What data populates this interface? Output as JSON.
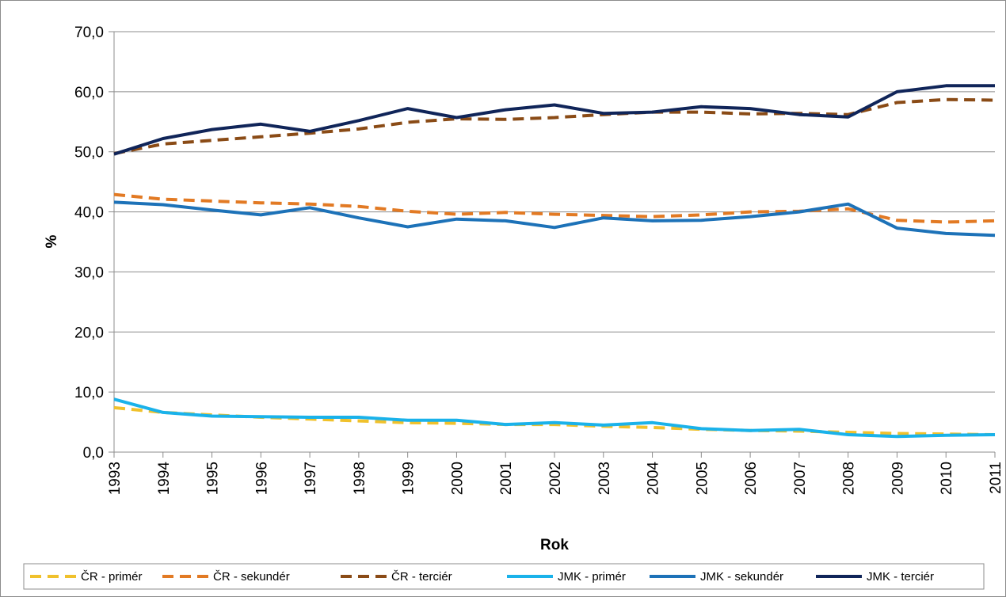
{
  "chart_data": {
    "type": "line",
    "title": "",
    "xlabel": "Rok",
    "ylabel": "%",
    "ylim": [
      0,
      70
    ],
    "yticks": [
      "0,0",
      "10,0",
      "20,0",
      "30,0",
      "40,0",
      "50,0",
      "60,0",
      "70,0"
    ],
    "grid": true,
    "legend_position": "bottom",
    "categories": [
      "1993",
      "1994",
      "1995",
      "1996",
      "1997",
      "1998",
      "1999",
      "2000",
      "2001",
      "2002",
      "2003",
      "2004",
      "2005",
      "2006",
      "2007",
      "2008",
      "2009",
      "2010",
      "2011"
    ],
    "series": [
      {
        "name": "ČR - primér",
        "color": "#f0c12c",
        "dashed": true,
        "values": [
          7.4,
          6.6,
          6.2,
          5.8,
          5.5,
          5.2,
          4.9,
          4.8,
          4.6,
          4.6,
          4.3,
          4.1,
          3.8,
          3.6,
          3.5,
          3.3,
          3.1,
          3.0,
          2.9
        ]
      },
      {
        "name": "ČR - sekundér",
        "color": "#e27a24",
        "dashed": true,
        "values": [
          42.9,
          42.1,
          41.8,
          41.5,
          41.3,
          40.9,
          40.1,
          39.6,
          39.9,
          39.6,
          39.4,
          39.2,
          39.5,
          40.0,
          40.1,
          40.5,
          38.6,
          38.3,
          38.5
        ]
      },
      {
        "name": "ČR - terciér",
        "color": "#8a4b16",
        "dashed": true,
        "values": [
          49.7,
          51.3,
          51.9,
          52.5,
          53.1,
          53.8,
          54.9,
          55.5,
          55.4,
          55.7,
          56.2,
          56.6,
          56.6,
          56.3,
          56.4,
          56.2,
          58.2,
          58.7,
          58.6
        ]
      },
      {
        "name": "JMK - primér",
        "color": "#1ab2ea",
        "dashed": false,
        "values": [
          8.8,
          6.6,
          6.0,
          5.9,
          5.8,
          5.8,
          5.3,
          5.3,
          4.6,
          4.9,
          4.5,
          4.9,
          3.9,
          3.6,
          3.8,
          2.9,
          2.6,
          2.8,
          2.9
        ]
      },
      {
        "name": "JMK - sekundér",
        "color": "#1d72b8",
        "dashed": false,
        "values": [
          41.6,
          41.2,
          40.3,
          39.5,
          40.7,
          39.0,
          37.5,
          38.8,
          38.5,
          37.4,
          39.0,
          38.5,
          38.6,
          39.2,
          40.0,
          41.3,
          37.3,
          36.4,
          36.1
        ]
      },
      {
        "name": "JMK - terciér",
        "color": "#102559",
        "dashed": false,
        "values": [
          49.6,
          52.2,
          53.7,
          54.6,
          53.4,
          55.2,
          57.2,
          55.7,
          57.0,
          57.8,
          56.4,
          56.6,
          57.5,
          57.2,
          56.2,
          55.8,
          60.0,
          61.0,
          61.0
        ]
      }
    ]
  }
}
